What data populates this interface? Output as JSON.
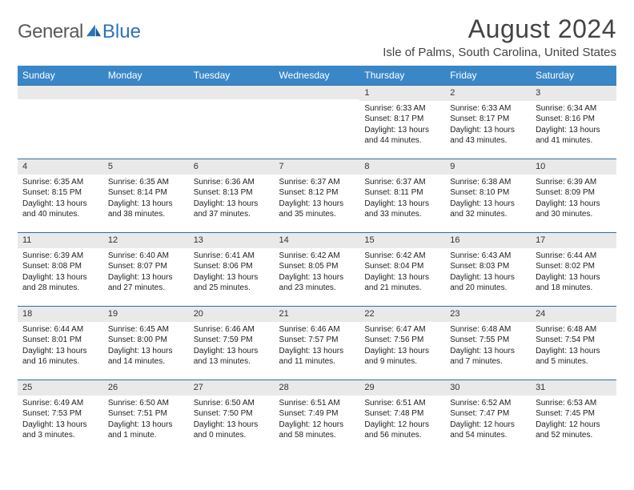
{
  "logo": {
    "text1": "General",
    "text2": "Blue"
  },
  "title": "August 2024",
  "location": "Isle of Palms, South Carolina, United States",
  "accent_color": "#3a87c8",
  "daynum_border_color": "#2d6ea8",
  "daynum_bg": "#e9e9e9",
  "weekdays": [
    "Sunday",
    "Monday",
    "Tuesday",
    "Wednesday",
    "Thursday",
    "Friday",
    "Saturday"
  ],
  "weeks": [
    [
      null,
      null,
      null,
      null,
      {
        "n": "1",
        "sunrise": "6:33 AM",
        "sunset": "8:17 PM",
        "daylight": "13 hours and 44 minutes."
      },
      {
        "n": "2",
        "sunrise": "6:33 AM",
        "sunset": "8:17 PM",
        "daylight": "13 hours and 43 minutes."
      },
      {
        "n": "3",
        "sunrise": "6:34 AM",
        "sunset": "8:16 PM",
        "daylight": "13 hours and 41 minutes."
      }
    ],
    [
      {
        "n": "4",
        "sunrise": "6:35 AM",
        "sunset": "8:15 PM",
        "daylight": "13 hours and 40 minutes."
      },
      {
        "n": "5",
        "sunrise": "6:35 AM",
        "sunset": "8:14 PM",
        "daylight": "13 hours and 38 minutes."
      },
      {
        "n": "6",
        "sunrise": "6:36 AM",
        "sunset": "8:13 PM",
        "daylight": "13 hours and 37 minutes."
      },
      {
        "n": "7",
        "sunrise": "6:37 AM",
        "sunset": "8:12 PM",
        "daylight": "13 hours and 35 minutes."
      },
      {
        "n": "8",
        "sunrise": "6:37 AM",
        "sunset": "8:11 PM",
        "daylight": "13 hours and 33 minutes."
      },
      {
        "n": "9",
        "sunrise": "6:38 AM",
        "sunset": "8:10 PM",
        "daylight": "13 hours and 32 minutes."
      },
      {
        "n": "10",
        "sunrise": "6:39 AM",
        "sunset": "8:09 PM",
        "daylight": "13 hours and 30 minutes."
      }
    ],
    [
      {
        "n": "11",
        "sunrise": "6:39 AM",
        "sunset": "8:08 PM",
        "daylight": "13 hours and 28 minutes."
      },
      {
        "n": "12",
        "sunrise": "6:40 AM",
        "sunset": "8:07 PM",
        "daylight": "13 hours and 27 minutes."
      },
      {
        "n": "13",
        "sunrise": "6:41 AM",
        "sunset": "8:06 PM",
        "daylight": "13 hours and 25 minutes."
      },
      {
        "n": "14",
        "sunrise": "6:42 AM",
        "sunset": "8:05 PM",
        "daylight": "13 hours and 23 minutes."
      },
      {
        "n": "15",
        "sunrise": "6:42 AM",
        "sunset": "8:04 PM",
        "daylight": "13 hours and 21 minutes."
      },
      {
        "n": "16",
        "sunrise": "6:43 AM",
        "sunset": "8:03 PM",
        "daylight": "13 hours and 20 minutes."
      },
      {
        "n": "17",
        "sunrise": "6:44 AM",
        "sunset": "8:02 PM",
        "daylight": "13 hours and 18 minutes."
      }
    ],
    [
      {
        "n": "18",
        "sunrise": "6:44 AM",
        "sunset": "8:01 PM",
        "daylight": "13 hours and 16 minutes."
      },
      {
        "n": "19",
        "sunrise": "6:45 AM",
        "sunset": "8:00 PM",
        "daylight": "13 hours and 14 minutes."
      },
      {
        "n": "20",
        "sunrise": "6:46 AM",
        "sunset": "7:59 PM",
        "daylight": "13 hours and 13 minutes."
      },
      {
        "n": "21",
        "sunrise": "6:46 AM",
        "sunset": "7:57 PM",
        "daylight": "13 hours and 11 minutes."
      },
      {
        "n": "22",
        "sunrise": "6:47 AM",
        "sunset": "7:56 PM",
        "daylight": "13 hours and 9 minutes."
      },
      {
        "n": "23",
        "sunrise": "6:48 AM",
        "sunset": "7:55 PM",
        "daylight": "13 hours and 7 minutes."
      },
      {
        "n": "24",
        "sunrise": "6:48 AM",
        "sunset": "7:54 PM",
        "daylight": "13 hours and 5 minutes."
      }
    ],
    [
      {
        "n": "25",
        "sunrise": "6:49 AM",
        "sunset": "7:53 PM",
        "daylight": "13 hours and 3 minutes."
      },
      {
        "n": "26",
        "sunrise": "6:50 AM",
        "sunset": "7:51 PM",
        "daylight": "13 hours and 1 minute."
      },
      {
        "n": "27",
        "sunrise": "6:50 AM",
        "sunset": "7:50 PM",
        "daylight": "13 hours and 0 minutes."
      },
      {
        "n": "28",
        "sunrise": "6:51 AM",
        "sunset": "7:49 PM",
        "daylight": "12 hours and 58 minutes."
      },
      {
        "n": "29",
        "sunrise": "6:51 AM",
        "sunset": "7:48 PM",
        "daylight": "12 hours and 56 minutes."
      },
      {
        "n": "30",
        "sunrise": "6:52 AM",
        "sunset": "7:47 PM",
        "daylight": "12 hours and 54 minutes."
      },
      {
        "n": "31",
        "sunrise": "6:53 AM",
        "sunset": "7:45 PM",
        "daylight": "12 hours and 52 minutes."
      }
    ]
  ],
  "labels": {
    "sunrise": "Sunrise:",
    "sunset": "Sunset:",
    "daylight": "Daylight:"
  }
}
